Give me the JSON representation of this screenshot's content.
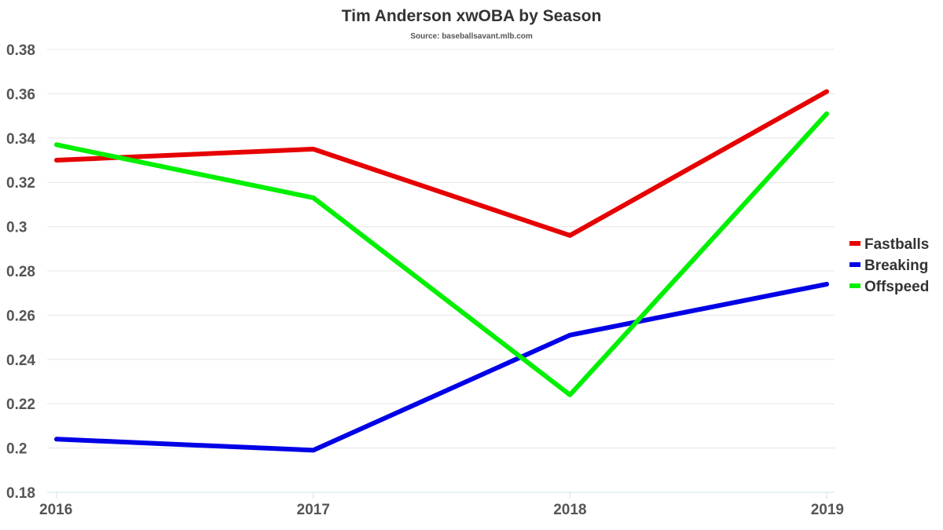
{
  "chart_data": {
    "type": "line",
    "title": "Tim Anderson xwOBA by Season",
    "subtitle": "Source: baseballsavant.mlb.com",
    "x": [
      "2016",
      "2017",
      "2018",
      "2019"
    ],
    "ylim": [
      0.18,
      0.38
    ],
    "yticks": [
      "0.38",
      "0.36",
      "0.34",
      "0.32",
      "0.3",
      "0.28",
      "0.26",
      "0.24",
      "0.22",
      "0.2",
      "0.18"
    ],
    "grid": true,
    "legend_position": "right",
    "series": [
      {
        "name": "Fastballs",
        "color": "#e60000",
        "values": [
          0.33,
          0.335,
          0.296,
          0.361
        ]
      },
      {
        "name": "Breaking",
        "color": "#0000e6",
        "values": [
          0.204,
          0.199,
          0.251,
          0.274
        ]
      },
      {
        "name": "Offspeed",
        "color": "#00f000",
        "values": [
          0.337,
          0.313,
          0.224,
          0.351
        ]
      }
    ]
  }
}
